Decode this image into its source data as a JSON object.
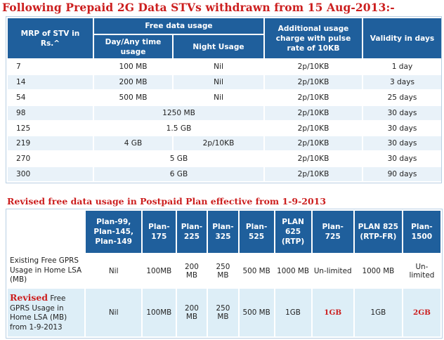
{
  "title1": "Following Prepaid 2G Data STVs withdrawn from 15 Aug-2013:-",
  "prepaid": {
    "headers": {
      "mrp": "MRP of STV in Rs.^",
      "free": "Free data usage",
      "day": "Day/Any time usage",
      "night": "Night Usage",
      "additional": "Additional usage charge with pulse rate of 10KB",
      "validity": "Validity in days"
    },
    "rows": [
      {
        "mrp": "7",
        "day": "100 MB",
        "night": "Nil",
        "charge": "2p/10KB",
        "validity": "1 day"
      },
      {
        "mrp": "14",
        "day": "200 MB",
        "night": "Nil",
        "charge": "2p/10KB",
        "validity": "3 days"
      },
      {
        "mrp": "54",
        "day": "500 MB",
        "night": "Nil",
        "charge": "2p/10KB",
        "validity": "25 days"
      },
      {
        "mrp": "98",
        "merged": "1250 MB",
        "charge": "2p/10KB",
        "validity": "30 days"
      },
      {
        "mrp": "125",
        "merged": "1.5 GB",
        "charge": "2p/10KB",
        "validity": "30 days"
      },
      {
        "mrp": "219",
        "day": "4 GB",
        "night": "2p/10KB",
        "charge": "2p/10KB",
        "validity": "30 days"
      },
      {
        "mrp": "270",
        "merged": "5 GB",
        "charge": "2p/10KB",
        "validity": "30 days"
      },
      {
        "mrp": "300",
        "merged": "6 GB",
        "charge": "2p/10KB",
        "validity": "90 days"
      }
    ]
  },
  "title2": "Revised free data usage in Postpaid Plan effective from 1-9-2013",
  "postpaid": {
    "plans": [
      "Plan-99, Plan-145, Plan-149",
      "Plan-175",
      "Plan-225",
      "Plan-325",
      "Plan-525",
      "PLAN 625 (RTP)",
      "Plan-725",
      "PLAN 825 (RTP-FR)",
      "Plan-1500"
    ],
    "existing_label": "Existing Free GPRS Usage in Home LSA (MB)",
    "existing": [
      "Nil",
      "100MB",
      "200 MB",
      "250 MB",
      "500 MB",
      "1000 MB",
      "Un-limited",
      "1000 MB",
      "Un-limited"
    ],
    "revised_word": "Revised",
    "revised_label_rest": " Free GPRS Usage in Home LSA (MB) from 1-9-2013",
    "revised": [
      "Nil",
      "100MB",
      "200 MB",
      "250 MB",
      "500 MB",
      "1GB",
      "1GB",
      "1GB",
      "2GB"
    ]
  }
}
